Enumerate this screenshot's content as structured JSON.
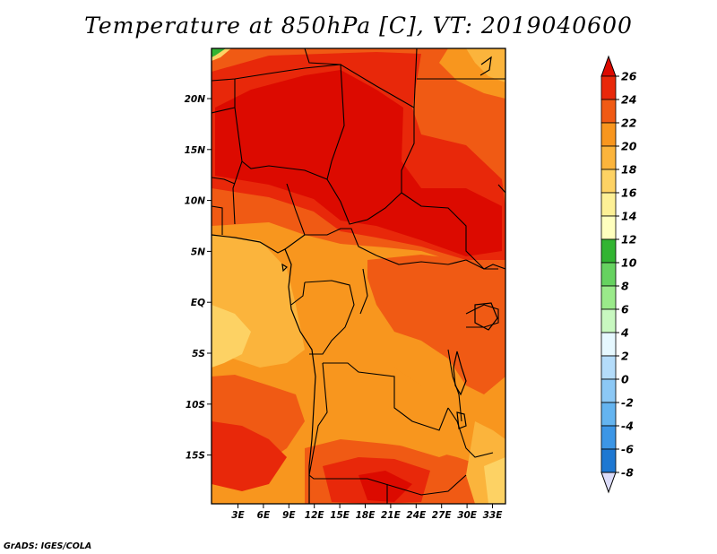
{
  "title": "Temperature at 850hPa [C], VT: 2019040600",
  "credit": "GrADS: IGES/COLA",
  "lon_labels": [
    "3E",
    "6E",
    "9E",
    "12E",
    "15E",
    "18E",
    "21E",
    "24E",
    "27E",
    "30E",
    "33E"
  ],
  "lat_labels": [
    "20N",
    "15N",
    "10N",
    "5N",
    "EQ",
    "5S",
    "10S",
    "15S"
  ],
  "colorbar": {
    "labels": [
      "26",
      "24",
      "22",
      "20",
      "18",
      "16",
      "14",
      "12",
      "10",
      "8",
      "6",
      "4",
      "2",
      "0",
      "-2",
      "-4",
      "-6",
      "-8"
    ],
    "colors": [
      "#dc0a00",
      "#e8280a",
      "#f05a14",
      "#f8961e",
      "#fbb43c",
      "#fdd264",
      "#fdf096",
      "#ffffbe",
      "#32b432",
      "#66d260",
      "#9aea8a",
      "#c8f8c0",
      "#e6f8ff",
      "#b4dcfa",
      "#8cc8f5",
      "#64b4f0",
      "#3c96e6",
      "#1e78d2",
      "#0a5ab4",
      "#003c96",
      "#0a0a6e",
      "#dcdcfa"
    ]
  }
}
